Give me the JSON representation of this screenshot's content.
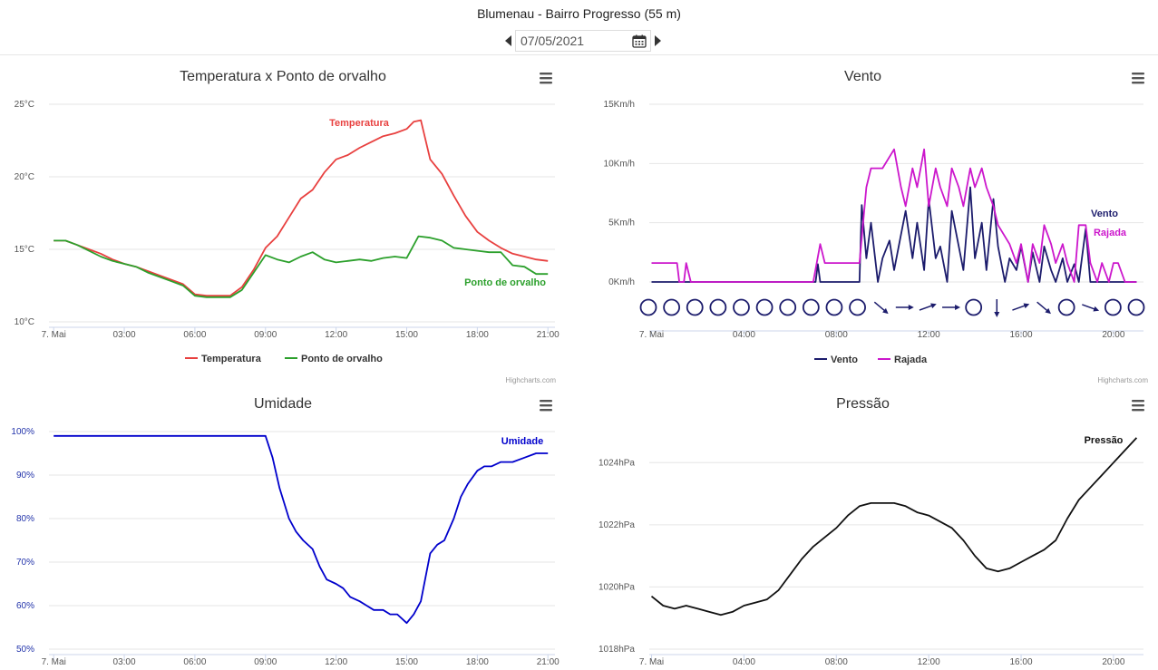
{
  "page": {
    "title": "Blumenau - Bairro Progresso (55 m)",
    "date_value": "07/05/2021",
    "credits": "Highcharts.com"
  },
  "chart_data": [
    {
      "type": "line",
      "title": "Temperatura x Ponto de orvalho",
      "ylim": [
        10,
        25
      ],
      "y_ticks": [
        10,
        15,
        20,
        25
      ],
      "y_tick_labels": [
        "10°C",
        "15°C",
        "20°C",
        "25°C"
      ],
      "x_tick_labels": [
        "7. Mai",
        "03:00",
        "06:00",
        "09:00",
        "12:00",
        "15:00",
        "18:00",
        "21:00"
      ],
      "x_tick_hours": [
        0,
        3,
        6,
        9,
        12,
        15,
        18,
        21
      ],
      "xlim_hours": [
        -0.2,
        21.3
      ],
      "legend": "bottom-center",
      "series": [
        {
          "name": "Temperatura",
          "color": "#e8403f",
          "x": [
            0,
            0.5,
            1,
            1.5,
            2,
            2.5,
            3,
            3.5,
            4,
            4.5,
            5,
            5.5,
            6,
            6.5,
            7,
            7.5,
            8,
            8.5,
            9,
            9.5,
            10,
            10.5,
            11,
            11.5,
            12,
            12.5,
            13,
            13.5,
            14,
            14.5,
            15,
            15.3,
            15.6,
            16,
            16.5,
            17,
            17.5,
            18,
            18.5,
            19,
            19.5,
            20,
            20.5,
            21
          ],
          "values": [
            15.6,
            15.6,
            15.3,
            15,
            14.7,
            14.3,
            14,
            13.8,
            13.5,
            13.2,
            12.9,
            12.6,
            11.9,
            11.8,
            11.8,
            11.8,
            12.4,
            13.6,
            15.1,
            15.9,
            17.2,
            18.5,
            19.1,
            20.3,
            21.2,
            21.5,
            22,
            22.4,
            22.8,
            23,
            23.3,
            23.8,
            23.9,
            21.2,
            20.2,
            18.7,
            17.3,
            16.2,
            15.6,
            15.1,
            14.7,
            14.5,
            14.3,
            14.2
          ]
        },
        {
          "name": "Ponto de orvalho",
          "color": "#2ca02c",
          "x": [
            0,
            0.5,
            1,
            1.5,
            2,
            2.5,
            3,
            3.5,
            4,
            4.5,
            5,
            5.5,
            6,
            6.5,
            7,
            7.5,
            8,
            8.5,
            9,
            9.5,
            10,
            10.5,
            11,
            11.5,
            12,
            12.5,
            13,
            13.5,
            14,
            14.5,
            15,
            15.5,
            16,
            16.5,
            17,
            17.5,
            18,
            18.5,
            19,
            19.5,
            20,
            20.5,
            21
          ],
          "values": [
            15.6,
            15.6,
            15.3,
            14.9,
            14.5,
            14.2,
            14,
            13.8,
            13.4,
            13.1,
            12.8,
            12.5,
            11.8,
            11.7,
            11.7,
            11.7,
            12.2,
            13.4,
            14.6,
            14.3,
            14.1,
            14.5,
            14.8,
            14.3,
            14.1,
            14.2,
            14.3,
            14.2,
            14.4,
            14.5,
            14.4,
            15.9,
            15.8,
            15.6,
            15.1,
            15,
            14.9,
            14.8,
            14.8,
            13.9,
            13.8,
            13.3,
            13.3
          ]
        }
      ]
    },
    {
      "type": "line",
      "title": "Vento",
      "ylim": [
        0,
        15
      ],
      "y_ticks": [
        0,
        5,
        10,
        15
      ],
      "y_tick_labels": [
        "0Km/h",
        "5Km/h",
        "10Km/h",
        "15Km/h"
      ],
      "x_tick_labels": [
        "7. Mai",
        "04:00",
        "08:00",
        "12:00",
        "16:00",
        "20:00"
      ],
      "x_tick_hours": [
        0,
        4,
        8,
        12,
        16,
        20
      ],
      "xlim_hours": [
        -0.1,
        21.3
      ],
      "legend": "bottom-center",
      "series": [
        {
          "name": "Vento",
          "color": "#1c1c6c",
          "x": [
            0,
            4,
            7.1,
            7.2,
            7.3,
            7.5,
            9,
            9.1,
            9.3,
            9.5,
            9.8,
            10,
            10.3,
            10.5,
            10.8,
            11,
            11.3,
            11.5,
            11.8,
            12,
            12.3,
            12.5,
            12.8,
            13,
            13.3,
            13.5,
            13.8,
            14,
            14.3,
            14.5,
            14.8,
            15,
            15.3,
            15.5,
            15.8,
            16,
            16.3,
            16.5,
            16.8,
            17,
            17.3,
            17.5,
            17.8,
            18,
            18.3,
            18.5,
            18.8,
            19,
            19.3,
            19.5,
            20,
            21
          ],
          "values": [
            0,
            0,
            0,
            1.5,
            0,
            0,
            0,
            6.5,
            2,
            5,
            0,
            2,
            3.5,
            1,
            4,
            6,
            2,
            5,
            1,
            7,
            2,
            3,
            0,
            6,
            3,
            1,
            8,
            2,
            5,
            1,
            7,
            3,
            0,
            2,
            1,
            3,
            0,
            2.5,
            0,
            3,
            1,
            0,
            2,
            0,
            1.5,
            0,
            4.5,
            0,
            0,
            0,
            0,
            0
          ]
        },
        {
          "name": "Rajada",
          "color": "#cc17cc",
          "x": [
            0,
            0.1,
            1.1,
            1.2,
            1.4,
            1.5,
            1.7,
            7,
            7.3,
            7.5,
            7.8,
            8,
            9,
            9.3,
            9.5,
            9.8,
            10,
            10.5,
            10.8,
            11,
            11.3,
            11.5,
            11.8,
            12,
            12.3,
            12.5,
            12.8,
            13,
            13.3,
            13.5,
            13.8,
            14,
            14.3,
            14.5,
            14.8,
            15,
            15.5,
            15.8,
            16,
            16.3,
            16.5,
            16.8,
            17,
            17.3,
            17.5,
            17.8,
            18,
            18.3,
            18.5,
            18.8,
            19,
            19.3,
            19.5,
            19.8,
            20,
            20.2,
            20.5,
            21
          ],
          "values": [
            1.6,
            1.6,
            1.6,
            0,
            0,
            1.6,
            0,
            0,
            3.2,
            1.6,
            1.6,
            1.6,
            1.6,
            8,
            9.6,
            9.6,
            9.6,
            11.2,
            8,
            6.4,
            9.6,
            8,
            11.2,
            6.4,
            9.6,
            8,
            6.4,
            9.6,
            8,
            6.4,
            9.6,
            8,
            9.6,
            8,
            6.4,
            4.8,
            3.2,
            1.6,
            3.2,
            0,
            3.2,
            1.6,
            4.8,
            3.2,
            1.6,
            3.2,
            1.6,
            0,
            4.8,
            4.8,
            1.6,
            0,
            1.6,
            0,
            1.6,
            1.6,
            0,
            0
          ]
        }
      ],
      "direction_markers": [
        "calm",
        "calm",
        "calm",
        "calm",
        "calm",
        "calm",
        "calm",
        "calm",
        "calm",
        "calm",
        "SE",
        "E",
        "ENE",
        "E",
        "calm",
        "S",
        "ENE",
        "SE",
        "calm",
        "ESE",
        "calm",
        "calm"
      ]
    },
    {
      "type": "line",
      "title": "Umidade",
      "ylim": [
        50,
        100
      ],
      "y_ticks": [
        50,
        60,
        70,
        80,
        90,
        100
      ],
      "y_tick_labels": [
        "50%",
        "60%",
        "70%",
        "80%",
        "90%",
        "100%"
      ],
      "x_tick_labels": [
        "7. Mai",
        "03:00",
        "06:00",
        "09:00",
        "12:00",
        "15:00",
        "18:00",
        "21:00"
      ],
      "x_tick_hours": [
        0,
        3,
        6,
        9,
        12,
        15,
        18,
        21
      ],
      "xlim_hours": [
        -0.2,
        21.3
      ],
      "legend": "none",
      "series": [
        {
          "name": "Umidade",
          "color": "#0000cc",
          "x": [
            0,
            3,
            6,
            8.5,
            9,
            9.3,
            9.6,
            10,
            10.3,
            10.6,
            11,
            11.3,
            11.6,
            12,
            12.3,
            12.6,
            13,
            13.3,
            13.6,
            14,
            14.3,
            14.6,
            15,
            15.3,
            15.6,
            16,
            16.3,
            16.6,
            17,
            17.3,
            17.6,
            18,
            18.3,
            18.6,
            19,
            19.5,
            20,
            20.5,
            21
          ],
          "values": [
            99,
            99,
            99,
            99,
            99,
            94,
            87,
            80,
            77,
            75,
            73,
            69,
            66,
            65,
            64,
            62,
            61,
            60,
            59,
            59,
            58,
            58,
            56,
            58,
            61,
            72,
            74,
            75,
            80,
            85,
            88,
            91,
            92,
            92,
            93,
            93,
            94,
            95,
            95
          ]
        }
      ]
    },
    {
      "type": "line",
      "title": "Pressão",
      "ylim": [
        1018,
        1025
      ],
      "y_ticks": [
        1018,
        1020,
        1022,
        1024
      ],
      "y_tick_labels": [
        "1018hPa",
        "1020hPa",
        "1022hPa",
        "1024hPa"
      ],
      "x_tick_labels": [
        "7. Mai",
        "04:00",
        "08:00",
        "12:00",
        "16:00",
        "20:00"
      ],
      "x_tick_hours": [
        0,
        4,
        8,
        12,
        16,
        20
      ],
      "xlim_hours": [
        -0.1,
        21.3
      ],
      "legend": "none",
      "series": [
        {
          "name": "Pressão",
          "color": "#111111",
          "x": [
            0,
            0.5,
            1,
            1.5,
            2,
            2.5,
            3,
            3.5,
            4,
            4.5,
            5,
            5.5,
            6,
            6.5,
            7,
            7.5,
            8,
            8.5,
            9,
            9.5,
            10,
            10.5,
            11,
            11.5,
            12,
            12.5,
            13,
            13.5,
            14,
            14.5,
            15,
            15.5,
            16,
            16.5,
            17,
            17.5,
            18,
            18.5,
            19,
            19.5,
            20,
            20.5,
            21
          ],
          "values": [
            1019.7,
            1019.4,
            1019.3,
            1019.4,
            1019.3,
            1019.2,
            1019.1,
            1019.2,
            1019.4,
            1019.5,
            1019.6,
            1019.9,
            1020.4,
            1020.9,
            1021.3,
            1021.6,
            1021.9,
            1022.3,
            1022.6,
            1022.7,
            1022.7,
            1022.7,
            1022.6,
            1022.4,
            1022.3,
            1022.1,
            1021.9,
            1021.5,
            1021,
            1020.6,
            1020.5,
            1020.6,
            1020.8,
            1021,
            1021.2,
            1021.5,
            1022.2,
            1022.8,
            1023.2,
            1023.6,
            1024,
            1024.4,
            1024.8
          ]
        }
      ]
    }
  ]
}
